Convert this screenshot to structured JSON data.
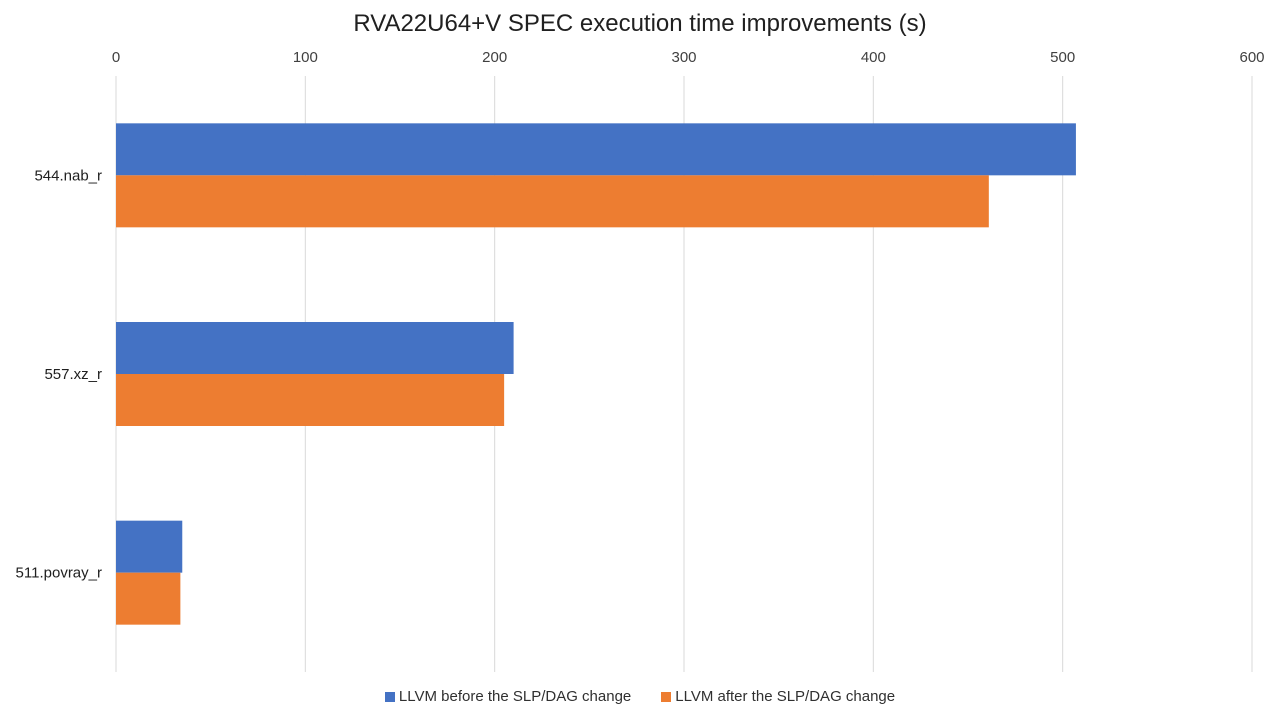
{
  "chart_data": {
    "type": "bar",
    "orientation": "horizontal",
    "title": "RVA22U64+V SPEC execution time improvements (s)",
    "categories": [
      "544.nab_r",
      "557.xz_r",
      "511.povray_r"
    ],
    "series": [
      {
        "name": "LLVM before the SLP/DAG change",
        "values": [
          507,
          210,
          35
        ],
        "color": "#4472C4"
      },
      {
        "name": "LLVM after the SLP/DAG change",
        "values": [
          461,
          205,
          34
        ],
        "color": "#ED7D31"
      }
    ],
    "xlim": [
      0,
      600
    ],
    "xticks": [
      0,
      100,
      200,
      300,
      400,
      500,
      600
    ],
    "x_axis_position": "top",
    "grid": true,
    "grid_color": "#D9D9D9",
    "legend_position": "bottom"
  }
}
